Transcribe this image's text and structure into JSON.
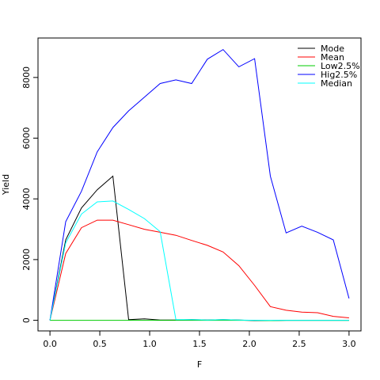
{
  "chart_data": {
    "type": "line",
    "title": "",
    "xlabel": "F",
    "ylabel": "Yield",
    "xlim": [
      -0.12,
      3.12
    ],
    "ylim": [
      -350,
      9300
    ],
    "xticks": [
      0.0,
      0.5,
      1.0,
      1.5,
      2.0,
      2.5,
      3.0
    ],
    "xtick_labels": [
      "0.0",
      "0.5",
      "1.0",
      "1.5",
      "2.0",
      "2.5",
      "3.0"
    ],
    "yticks": [
      0,
      2000,
      4000,
      6000,
      8000
    ],
    "ytick_labels": [
      "0",
      "2000",
      "4000",
      "6000",
      "8000"
    ],
    "grid": false,
    "legend_position": "top-right",
    "x": [
      0.0,
      0.1579,
      0.3158,
      0.4737,
      0.6316,
      0.7895,
      0.9474,
      1.1053,
      1.2632,
      1.4211,
      1.5789,
      1.7368,
      1.8947,
      2.0526,
      2.2105,
      2.3684,
      2.5263,
      2.6842,
      2.8421,
      3.0
    ],
    "series": [
      {
        "name": "Mode",
        "color": "#000000",
        "values": [
          0,
          2650,
          3700,
          4300,
          4750,
          20,
          50,
          10,
          10,
          20,
          10,
          20,
          10,
          -10,
          -10,
          0,
          0,
          0,
          0,
          0
        ]
      },
      {
        "name": "Mean",
        "color": "#ff0000",
        "values": [
          0,
          2200,
          3050,
          3300,
          3300,
          3150,
          3000,
          2900,
          2800,
          2630,
          2470,
          2250,
          1800,
          1150,
          450,
          330,
          270,
          250,
          130,
          80
        ]
      },
      {
        "name": "Low2.5%",
        "color": "#00cc00",
        "values": [
          0,
          0,
          0,
          0,
          0,
          0,
          0,
          0,
          0,
          0,
          0,
          0,
          0,
          0,
          -10,
          0,
          0,
          0,
          0,
          0
        ]
      },
      {
        "name": "Hig2.5%",
        "color": "#0000ff",
        "values": [
          0,
          3250,
          4250,
          5550,
          6350,
          6900,
          7350,
          7800,
          7920,
          7800,
          8600,
          8920,
          8350,
          8620,
          4750,
          2880,
          3100,
          2900,
          2650,
          720
        ]
      },
      {
        "name": "Median",
        "color": "#00ffff",
        "values": [
          0,
          2550,
          3500,
          3900,
          3930,
          3650,
          3350,
          2920,
          20,
          20,
          10,
          20,
          10,
          0,
          0,
          0,
          0,
          0,
          0,
          0
        ]
      }
    ]
  }
}
